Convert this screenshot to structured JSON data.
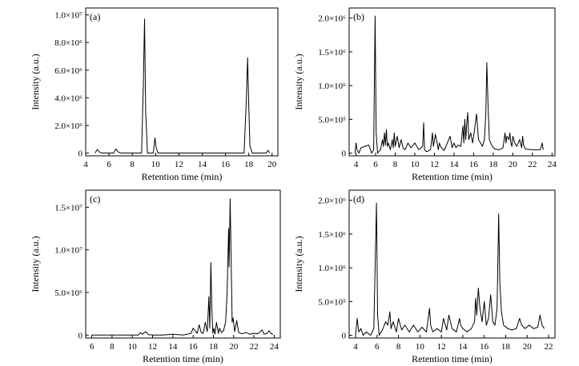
{
  "chart_data": [
    {
      "type": "line",
      "panel_label": "(a)",
      "xlabel": "Retention time (min)",
      "ylabel": "Intensity (a.u.)",
      "xlim": [
        4,
        20.5
      ],
      "ylim": [
        -200000,
        10500000
      ],
      "xticks": [
        4,
        6,
        8,
        10,
        12,
        14,
        16,
        18,
        20
      ],
      "xtick_labels": [
        "4",
        "6",
        "8",
        "10",
        "12",
        "14",
        "16",
        "18",
        "20"
      ],
      "yticks": [
        0,
        2000000,
        4000000,
        6000000,
        8000000,
        10000000
      ],
      "ytick_labels": [
        "0",
        "2.0×10⁶",
        "4.0×10⁶",
        "6.0×10⁶",
        "8.0×10⁶",
        "1.0×10⁷"
      ],
      "series": [
        {
          "x": [
            4.8,
            5.0,
            5.2,
            5.4,
            6.4,
            6.6,
            6.8,
            7.0,
            8.8,
            8.95,
            9.05,
            9.15,
            9.3,
            9.8,
            9.95,
            10.05,
            10.2,
            10.4,
            17.6,
            17.8,
            17.9,
            18.0,
            18.1,
            18.3,
            19.5,
            19.65,
            19.8
          ],
          "y": [
            0,
            250000,
            50000,
            0,
            0,
            300000,
            80000,
            0,
            0,
            5000000,
            9700000,
            3000000,
            0,
            0,
            1100000,
            400000,
            0,
            0,
            0,
            4000000,
            6900000,
            3500000,
            500000,
            0,
            0,
            200000,
            0
          ]
        }
      ]
    },
    {
      "type": "line",
      "panel_label": "(b)",
      "xlabel": "Retention time (min)",
      "ylabel": "Intensity (a.u.)",
      "xlim": [
        3.3,
        24.3
      ],
      "ylim": [
        -40000,
        2150000
      ],
      "xticks": [
        4,
        6,
        8,
        10,
        12,
        14,
        16,
        18,
        20,
        22,
        24
      ],
      "xtick_labels": [
        "4",
        "6",
        "8",
        "10",
        "12",
        "14",
        "16",
        "18",
        "20",
        "22",
        "24"
      ],
      "yticks": [
        0,
        500000,
        1000000,
        1500000,
        2000000
      ],
      "ytick_labels": [
        "0",
        "5.0×10⁵",
        "1.0×10⁶",
        "1.5×10⁶",
        "2.0×10⁶"
      ],
      "series": [
        {
          "x": [
            3.9,
            4.0,
            4.1,
            4.3,
            4.5,
            5.3,
            5.6,
            5.8,
            5.95,
            6.05,
            6.2,
            6.5,
            6.7,
            6.8,
            6.9,
            7.0,
            7.1,
            7.2,
            7.3,
            7.5,
            7.7,
            7.8,
            7.9,
            8.0,
            8.2,
            8.4,
            8.6,
            8.8,
            9.0,
            9.3,
            9.6,
            10.0,
            10.4,
            10.8,
            10.9,
            11.0,
            11.2,
            11.6,
            11.8,
            11.9,
            12.1,
            12.4,
            12.5,
            12.7,
            13.0,
            13.6,
            13.8,
            14.0,
            14.2,
            14.4,
            14.7,
            14.9,
            15.0,
            15.1,
            15.2,
            15.3,
            15.4,
            15.5,
            15.7,
            15.9,
            16.1,
            16.3,
            16.5,
            16.7,
            16.9,
            17.1,
            17.25,
            17.35,
            17.45,
            17.6,
            17.9,
            18.2,
            18.6,
            19.0,
            19.2,
            19.3,
            19.4,
            19.6,
            19.7,
            19.8,
            19.9,
            20.0,
            20.2,
            20.4,
            20.7,
            20.9,
            21.0,
            21.1,
            21.3,
            22.0,
            22.8,
            23.0,
            23.1
          ],
          "y": [
            0,
            150000,
            50000,
            0,
            80000,
            120000,
            0,
            50000,
            2030000,
            300000,
            0,
            50000,
            200000,
            100000,
            300000,
            120000,
            350000,
            100000,
            150000,
            50000,
            200000,
            80000,
            300000,
            100000,
            250000,
            80000,
            200000,
            80000,
            50000,
            150000,
            80000,
            150000,
            50000,
            100000,
            450000,
            50000,
            20000,
            50000,
            300000,
            100000,
            280000,
            50000,
            150000,
            80000,
            40000,
            250000,
            80000,
            150000,
            80000,
            120000,
            100000,
            400000,
            150000,
            500000,
            200000,
            450000,
            600000,
            200000,
            300000,
            150000,
            350000,
            580000,
            200000,
            150000,
            100000,
            200000,
            600000,
            1340000,
            800000,
            200000,
            100000,
            60000,
            50000,
            80000,
            300000,
            150000,
            250000,
            200000,
            300000,
            150000,
            100000,
            250000,
            150000,
            100000,
            200000,
            80000,
            250000,
            120000,
            60000,
            50000,
            50000,
            150000,
            50000
          ]
        }
      ]
    },
    {
      "type": "line",
      "panel_label": "(c)",
      "xlabel": "Retention time (min)",
      "ylabel": "Intensity (a.u.)",
      "xlim": [
        5.4,
        24.6
      ],
      "ylim": [
        -350000,
        17000000
      ],
      "xticks": [
        6,
        8,
        10,
        12,
        14,
        16,
        18,
        20,
        22,
        24
      ],
      "xtick_labels": [
        "6",
        "8",
        "10",
        "12",
        "14",
        "16",
        "18",
        "20",
        "22",
        "24"
      ],
      "yticks": [
        0,
        5000000,
        10000000,
        15000000
      ],
      "ytick_labels": [
        "0",
        "5.0×10⁶",
        "1.0×10⁷",
        "1.5×10⁷"
      ],
      "series": [
        {
          "x": [
            6.0,
            8.0,
            10.0,
            10.6,
            10.8,
            11.0,
            11.3,
            11.6,
            12.0,
            13.0,
            14.0,
            15.0,
            15.6,
            15.8,
            16.0,
            16.4,
            16.6,
            16.8,
            17.0,
            17.2,
            17.4,
            17.55,
            17.65,
            17.75,
            17.85,
            17.95,
            18.05,
            18.15,
            18.3,
            18.5,
            18.6,
            18.8,
            19.0,
            19.2,
            19.35,
            19.5,
            19.55,
            19.65,
            19.75,
            19.85,
            19.95,
            20.1,
            20.3,
            20.5,
            20.8,
            21.2,
            21.6,
            22.0,
            22.4,
            22.8,
            23.0,
            23.3,
            23.5,
            23.7,
            23.9
          ],
          "y": [
            0,
            0,
            0,
            0,
            300000,
            100000,
            400000,
            50000,
            0,
            0,
            100000,
            0,
            150000,
            200000,
            800000,
            200000,
            1200000,
            300000,
            200000,
            1500000,
            400000,
            4500000,
            800000,
            8500000,
            3000000,
            200000,
            800000,
            100000,
            1500000,
            200000,
            800000,
            300000,
            500000,
            1500000,
            5000000,
            12500000,
            8000000,
            16000000,
            9000000,
            1500000,
            2000000,
            400000,
            1700000,
            300000,
            150000,
            300000,
            100000,
            200000,
            150000,
            600000,
            100000,
            200000,
            500000,
            150000,
            100000
          ]
        }
      ]
    },
    {
      "type": "line",
      "panel_label": "(d)",
      "xlabel": "Retention time (min)",
      "ylabel": "Intensity (a.u.)",
      "xlim": [
        3.4,
        22.6
      ],
      "ylim": [
        -40000,
        2150000
      ],
      "xticks": [
        4,
        6,
        8,
        10,
        12,
        14,
        16,
        18,
        20,
        22
      ],
      "xtick_labels": [
        "4",
        "6",
        "8",
        "10",
        "12",
        "14",
        "16",
        "18",
        "20",
        "22"
      ],
      "yticks": [
        0,
        500000,
        1000000,
        1500000,
        2000000
      ],
      "ytick_labels": [
        "0",
        "5.0×10⁵",
        "1.0×10⁶",
        "1.5×10⁶",
        "2.0×10⁶"
      ],
      "series": [
        {
          "x": [
            4.0,
            4.15,
            4.3,
            4.5,
            4.7,
            5.0,
            5.4,
            5.7,
            5.95,
            6.05,
            6.2,
            6.5,
            6.8,
            7.0,
            7.2,
            7.3,
            7.5,
            7.8,
            8.0,
            8.3,
            8.6,
            9.0,
            9.4,
            9.8,
            10.2,
            10.6,
            10.9,
            11.0,
            11.2,
            11.6,
            12.0,
            12.2,
            12.5,
            12.7,
            13.0,
            13.4,
            13.7,
            13.8,
            14.0,
            14.4,
            14.8,
            15.1,
            15.2,
            15.3,
            15.45,
            15.6,
            15.8,
            16.0,
            16.2,
            16.4,
            16.6,
            16.8,
            17.0,
            17.2,
            17.35,
            17.45,
            17.6,
            17.8,
            18.2,
            18.6,
            19.0,
            19.3,
            19.5,
            19.8,
            20.2,
            20.6,
            21.0,
            21.2,
            21.4,
            21.6
          ],
          "y": [
            0,
            250000,
            50000,
            100000,
            0,
            50000,
            0,
            100000,
            1960000,
            300000,
            0,
            80000,
            200000,
            150000,
            350000,
            100000,
            200000,
            50000,
            250000,
            80000,
            150000,
            50000,
            150000,
            50000,
            120000,
            50000,
            400000,
            150000,
            50000,
            100000,
            50000,
            250000,
            80000,
            300000,
            100000,
            50000,
            250000,
            150000,
            100000,
            50000,
            100000,
            200000,
            550000,
            300000,
            700000,
            400000,
            200000,
            500000,
            150000,
            250000,
            600000,
            200000,
            150000,
            400000,
            1800000,
            800000,
            350000,
            150000,
            100000,
            80000,
            100000,
            250000,
            150000,
            100000,
            150000,
            100000,
            120000,
            300000,
            150000,
            100000
          ]
        }
      ]
    }
  ]
}
